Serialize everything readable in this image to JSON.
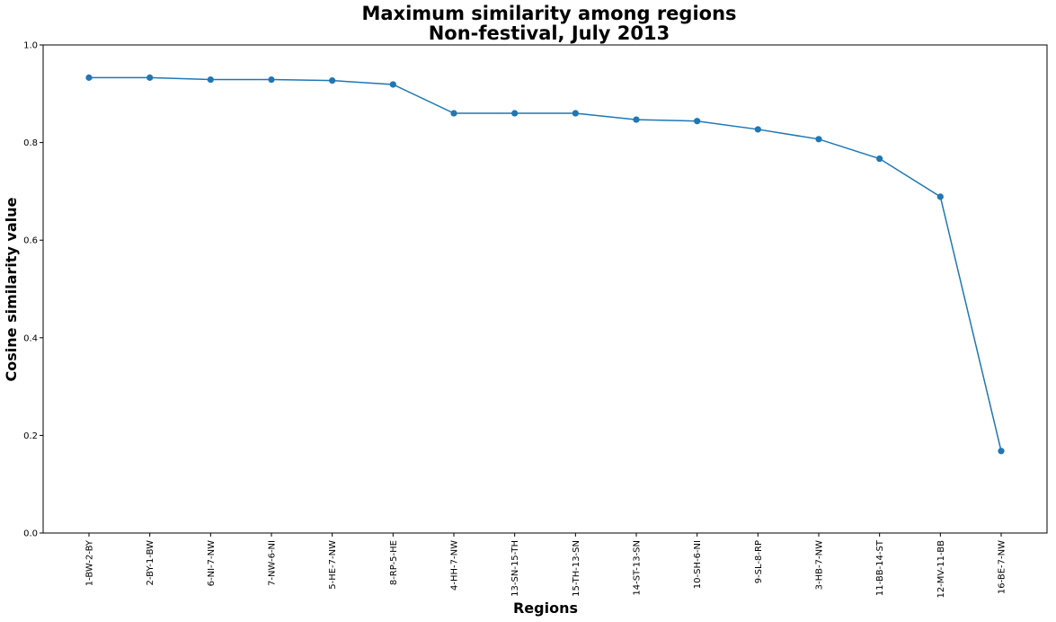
{
  "chart_data": {
    "type": "line",
    "title": "Maximum similarity among regions",
    "subtitle": "Non-festival, July 2013",
    "xlabel": "Regions",
    "ylabel": "Cosine similarity value",
    "ylim": [
      0.0,
      1.0
    ],
    "yticks": [
      "0.0",
      "0.2",
      "0.4",
      "0.6",
      "0.8",
      "1.0"
    ],
    "grid": false,
    "legend": "none",
    "categories": [
      "1-BW-2-BY",
      "2-BY-1-BW",
      "6-NI-7-NW",
      "7-NW-6-NI",
      "5-HE-7-NW",
      "8-RP-5-HE",
      "4-HH-7-NW",
      "13-SN-15-TH",
      "15-TH-13-SN",
      "14-ST-13-SN",
      "10-SH-6-NI",
      "9-SL-8-RP",
      "3-HB-7-NW",
      "11-BB-14-ST",
      "12-MV-11-BB",
      "16-BE-7-NW"
    ],
    "series": [
      {
        "values": [
          0.933,
          0.933,
          0.929,
          0.929,
          0.927,
          0.919,
          0.86,
          0.86,
          0.86,
          0.847,
          0.844,
          0.827,
          0.807,
          0.767,
          0.689,
          0.168
        ],
        "color": "#1f77b4",
        "marker": "circle"
      }
    ]
  }
}
